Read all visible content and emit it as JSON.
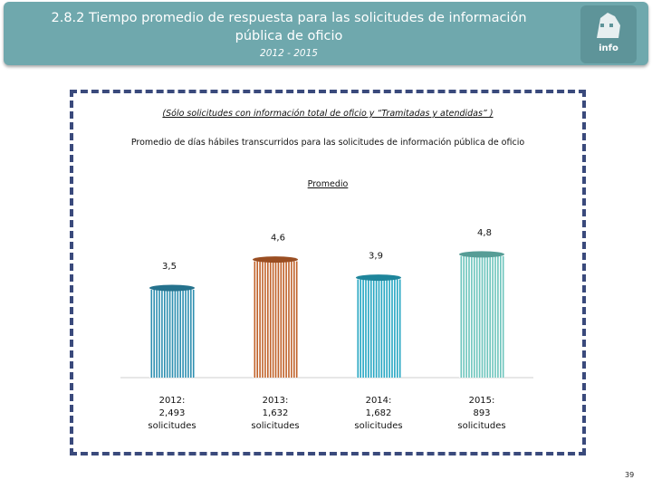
{
  "header": {
    "title_line1": "2.8.2 Tiempo promedio de respuesta para las solicitudes de información",
    "title_line2": "pública de oficio",
    "period": "2012 - 2015",
    "logo_text": "info"
  },
  "chart_data": {
    "type": "bar",
    "subtitle": "(Sólo solicitudes con información total de oficio y “Tramitadas y atendidas” )",
    "title": "Promedio de días hábiles transcurridos para las solicitudes de información pública de oficio",
    "series_name": "Promedio",
    "categories": [
      [
        "2012:",
        "2,493",
        "solicitudes"
      ],
      [
        "2013:",
        "1,632",
        "solicitudes"
      ],
      [
        "2014:",
        "1,682",
        "solicitudes"
      ],
      [
        "2015:",
        "893",
        "solicitudes"
      ]
    ],
    "values": [
      3.5,
      4.6,
      3.9,
      4.8
    ],
    "value_labels": [
      "3,5",
      "4,6",
      "3,9",
      "4,8"
    ],
    "colors": [
      "#2e8fb0",
      "#c0622a",
      "#25a6c2",
      "#6cc4bc"
    ],
    "ylim": [
      0,
      5.6
    ],
    "grid": false
  },
  "page_number": "39"
}
